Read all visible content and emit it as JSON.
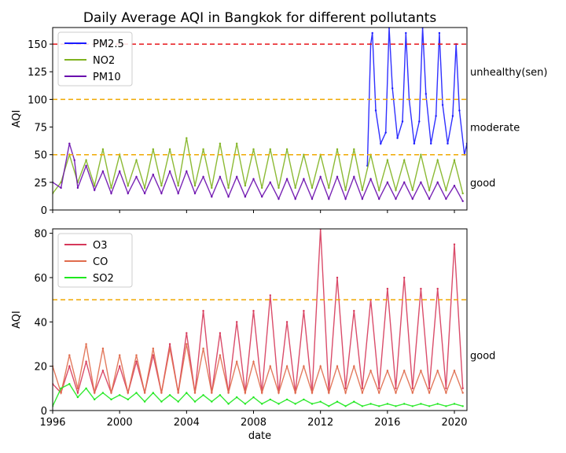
{
  "chart_data": {
    "type": "line",
    "title": "Daily Average AQI in Bangkok for different pollutants",
    "xlabel": "date",
    "x_ticks": [
      "1996",
      "2000",
      "2004",
      "2008",
      "2012",
      "2016",
      "2020"
    ],
    "xlim": [
      1996.0,
      2020.75
    ],
    "panels": [
      {
        "ylabel": "AQI",
        "ylim": [
          0,
          165
        ],
        "y_ticks": [
          0,
          25,
          50,
          75,
          100,
          125,
          150
        ],
        "legend": "top-left",
        "series": [
          {
            "name": "PM2.5",
            "color": "#1a1aff",
            "x": [
              2014.8,
              2015.0,
              2015.1,
              2015.3,
              2015.6,
              2015.9,
              2016.1,
              2016.3,
              2016.6,
              2016.9,
              2017.1,
              2017.3,
              2017.6,
              2017.9,
              2018.1,
              2018.3,
              2018.6,
              2018.9,
              2019.1,
              2019.3,
              2019.6,
              2019.9,
              2020.1,
              2020.3,
              2020.6,
              2020.75
            ],
            "y": [
              40,
              150,
              160,
              90,
              60,
              70,
              165,
              110,
              65,
              80,
              160,
              100,
              60,
              80,
              165,
              105,
              60,
              85,
              160,
              95,
              60,
              85,
              150,
              90,
              50,
              60
            ]
          },
          {
            "name": "NO2",
            "color": "#7fb21f",
            "x": [
              1996.0,
              1996.5,
              1997.0,
              1997.5,
              1998.0,
              1998.5,
              1999.0,
              1999.5,
              2000.0,
              2000.5,
              2001.0,
              2001.5,
              2002.0,
              2002.5,
              2003.0,
              2003.5,
              2004.0,
              2004.5,
              2005.0,
              2005.5,
              2006.0,
              2006.5,
              2007.0,
              2007.5,
              2008.0,
              2008.5,
              2009.0,
              2009.5,
              2010.0,
              2010.5,
              2011.0,
              2011.5,
              2012.0,
              2012.5,
              2013.0,
              2013.5,
              2014.0,
              2014.5,
              2015.0,
              2015.5,
              2016.0,
              2016.5,
              2017.0,
              2017.5,
              2018.0,
              2018.5,
              2019.0,
              2019.5,
              2020.0,
              2020.5
            ],
            "y": [
              15,
              25,
              50,
              25,
              45,
              22,
              55,
              20,
              50,
              22,
              45,
              20,
              55,
              22,
              55,
              22,
              65,
              22,
              55,
              20,
              60,
              20,
              60,
              22,
              55,
              20,
              55,
              20,
              55,
              20,
              50,
              20,
              50,
              20,
              55,
              18,
              55,
              18,
              50,
              18,
              45,
              18,
              45,
              18,
              50,
              18,
              45,
              18,
              45,
              15
            ]
          },
          {
            "name": "PM10",
            "color": "#6a0dad",
            "x": [
              1996.0,
              1996.5,
              1997.0,
              1997.3,
              1997.5,
              1998.0,
              1998.5,
              1999.0,
              1999.5,
              2000.0,
              2000.5,
              2001.0,
              2001.5,
              2002.0,
              2002.5,
              2003.0,
              2003.5,
              2004.0,
              2004.5,
              2005.0,
              2005.5,
              2006.0,
              2006.5,
              2007.0,
              2007.5,
              2008.0,
              2008.5,
              2009.0,
              2009.5,
              2010.0,
              2010.5,
              2011.0,
              2011.5,
              2012.0,
              2012.5,
              2013.0,
              2013.5,
              2014.0,
              2014.5,
              2015.0,
              2015.5,
              2016.0,
              2016.5,
              2017.0,
              2017.5,
              2018.0,
              2018.5,
              2019.0,
              2019.5,
              2020.0,
              2020.5
            ],
            "y": [
              25,
              20,
              60,
              45,
              20,
              40,
              18,
              35,
              15,
              35,
              15,
              30,
              15,
              32,
              15,
              35,
              15,
              35,
              15,
              30,
              12,
              30,
              12,
              30,
              12,
              28,
              12,
              25,
              10,
              28,
              10,
              28,
              10,
              30,
              10,
              30,
              10,
              30,
              10,
              28,
              10,
              25,
              10,
              25,
              10,
              25,
              10,
              25,
              10,
              22,
              8
            ]
          }
        ],
        "reference_lines": [
          {
            "value": 50,
            "color": "#f0a800",
            "label": "good"
          },
          {
            "value": 100,
            "color": "#f0a800",
            "label": "moderate"
          },
          {
            "value": 150,
            "color": "#e8161b",
            "label": "unhealthy(sen)"
          }
        ]
      },
      {
        "ylabel": "AQI",
        "ylim": [
          0,
          82
        ],
        "y_ticks": [
          0,
          20,
          40,
          60,
          80
        ],
        "legend": "top-left",
        "series": [
          {
            "name": "O3",
            "color": "#d6385a",
            "x": [
              1996.0,
              1996.5,
              1997.0,
              1997.5,
              1998.0,
              1998.5,
              1999.0,
              1999.5,
              2000.0,
              2000.5,
              2001.0,
              2001.5,
              2002.0,
              2002.5,
              2003.0,
              2003.5,
              2004.0,
              2004.5,
              2005.0,
              2005.5,
              2006.0,
              2006.5,
              2007.0,
              2007.5,
              2008.0,
              2008.5,
              2009.0,
              2009.5,
              2010.0,
              2010.5,
              2011.0,
              2011.5,
              2012.0,
              2012.5,
              2013.0,
              2013.5,
              2014.0,
              2014.5,
              2015.0,
              2015.5,
              2016.0,
              2016.5,
              2017.0,
              2017.5,
              2018.0,
              2018.5,
              2019.0,
              2019.5,
              2020.0,
              2020.5
            ],
            "y": [
              12,
              8,
              20,
              8,
              22,
              8,
              18,
              8,
              20,
              8,
              22,
              8,
              25,
              8,
              30,
              8,
              35,
              8,
              45,
              8,
              35,
              8,
              40,
              8,
              45,
              8,
              52,
              8,
              40,
              8,
              45,
              8,
              82,
              8,
              60,
              10,
              45,
              10,
              50,
              10,
              55,
              10,
              60,
              10,
              55,
              10,
              55,
              10,
              75,
              10
            ]
          },
          {
            "name": "CO",
            "color": "#e06b4c",
            "x": [
              1996.0,
              1996.5,
              1997.0,
              1997.5,
              1998.0,
              1998.5,
              1999.0,
              1999.5,
              2000.0,
              2000.5,
              2001.0,
              2001.5,
              2002.0,
              2002.5,
              2003.0,
              2003.5,
              2004.0,
              2004.5,
              2005.0,
              2005.5,
              2006.0,
              2006.5,
              2007.0,
              2007.5,
              2008.0,
              2008.5,
              2009.0,
              2009.5,
              2010.0,
              2010.5,
              2011.0,
              2011.5,
              2012.0,
              2012.5,
              2013.0,
              2013.5,
              2014.0,
              2014.5,
              2015.0,
              2015.5,
              2016.0,
              2016.5,
              2017.0,
              2017.5,
              2018.0,
              2018.5,
              2019.0,
              2019.5,
              2020.0,
              2020.5
            ],
            "y": [
              20,
              8,
              25,
              10,
              30,
              8,
              28,
              8,
              25,
              8,
              25,
              8,
              28,
              8,
              28,
              8,
              30,
              8,
              28,
              8,
              25,
              8,
              22,
              8,
              22,
              8,
              20,
              8,
              20,
              8,
              20,
              8,
              20,
              8,
              20,
              8,
              20,
              8,
              18,
              8,
              18,
              8,
              18,
              8,
              18,
              8,
              18,
              8,
              18,
              8
            ]
          },
          {
            "name": "SO2",
            "color": "#1ee81e",
            "x": [
              1996.0,
              1996.5,
              1997.0,
              1997.5,
              1998.0,
              1998.5,
              1999.0,
              1999.5,
              2000.0,
              2000.5,
              2001.0,
              2001.5,
              2002.0,
              2002.5,
              2003.0,
              2003.5,
              2004.0,
              2004.5,
              2005.0,
              2005.5,
              2006.0,
              2006.5,
              2007.0,
              2007.5,
              2008.0,
              2008.5,
              2009.0,
              2009.5,
              2010.0,
              2010.5,
              2011.0,
              2011.5,
              2012.0,
              2012.5,
              2013.0,
              2013.5,
              2014.0,
              2014.5,
              2015.0,
              2015.5,
              2016.0,
              2016.5,
              2017.0,
              2017.5,
              2018.0,
              2018.5,
              2019.0,
              2019.5,
              2020.0,
              2020.5
            ],
            "y": [
              2,
              10,
              12,
              6,
              10,
              5,
              8,
              5,
              7,
              5,
              8,
              4,
              8,
              4,
              7,
              4,
              8,
              4,
              7,
              4,
              7,
              3,
              6,
              3,
              6,
              3,
              5,
              3,
              5,
              3,
              5,
              3,
              4,
              2,
              4,
              2,
              4,
              2,
              3,
              2,
              3,
              2,
              3,
              2,
              3,
              2,
              3,
              2,
              3,
              2
            ]
          }
        ],
        "reference_lines": [
          {
            "value": 50,
            "color": "#f0a800",
            "label": "good"
          }
        ]
      }
    ]
  }
}
